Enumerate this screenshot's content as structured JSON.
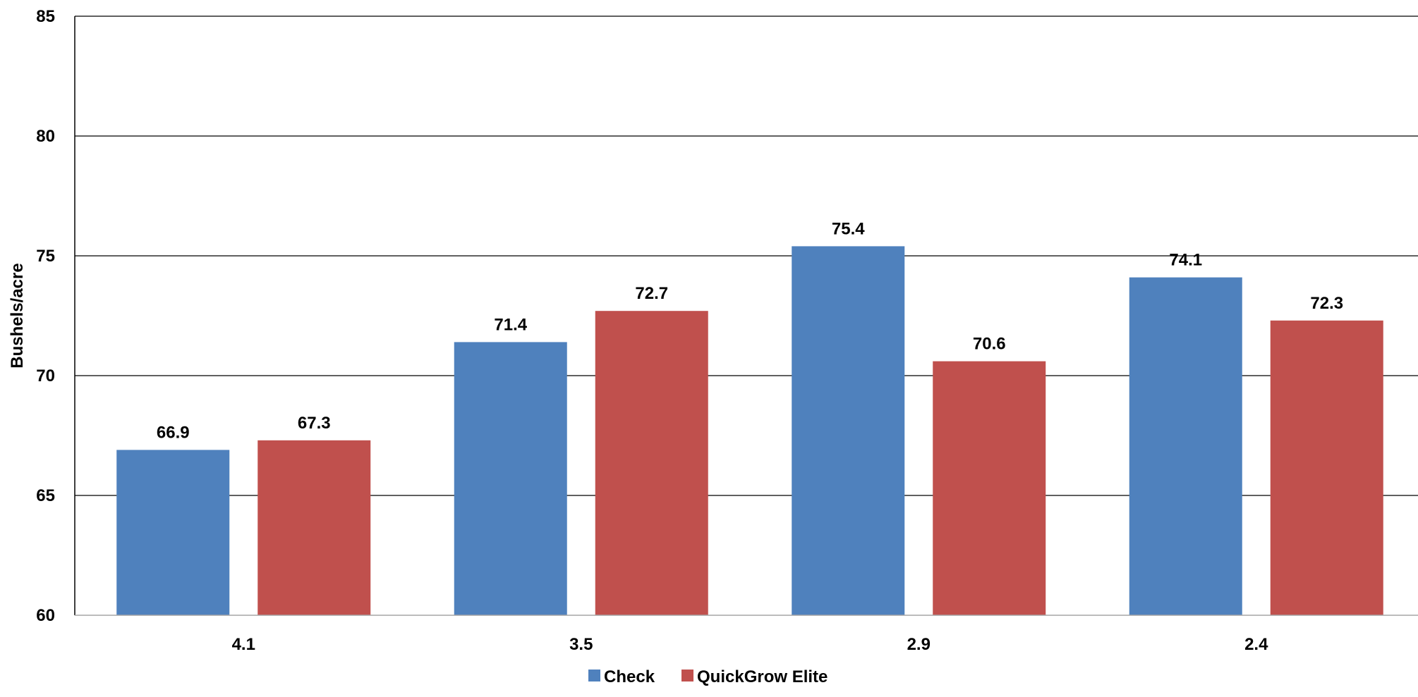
{
  "chart_data": {
    "type": "bar",
    "title": "",
    "xlabel": "",
    "ylabel": "Bushels/acre",
    "ylim": [
      60,
      85
    ],
    "yticks": [
      60,
      65,
      70,
      75,
      80,
      85
    ],
    "ytick_labels": [
      "60",
      "65",
      "70",
      "75",
      "80",
      "85"
    ],
    "categories": [
      "4.1",
      "3.5",
      "2.9",
      "2.4"
    ],
    "series": [
      {
        "name": "Check",
        "color": "#4f81bd",
        "values": [
          66.9,
          71.4,
          75.4,
          74.1
        ],
        "labels": [
          "66.9",
          "71.4",
          "75.4",
          "74.1"
        ]
      },
      {
        "name": "QuickGrow Elite",
        "color": "#c0504d",
        "values": [
          67.3,
          72.7,
          70.6,
          72.3
        ],
        "labels": [
          "67.3",
          "72.7",
          "70.6",
          "72.3"
        ]
      }
    ],
    "grid": true,
    "legend": "bottom"
  }
}
